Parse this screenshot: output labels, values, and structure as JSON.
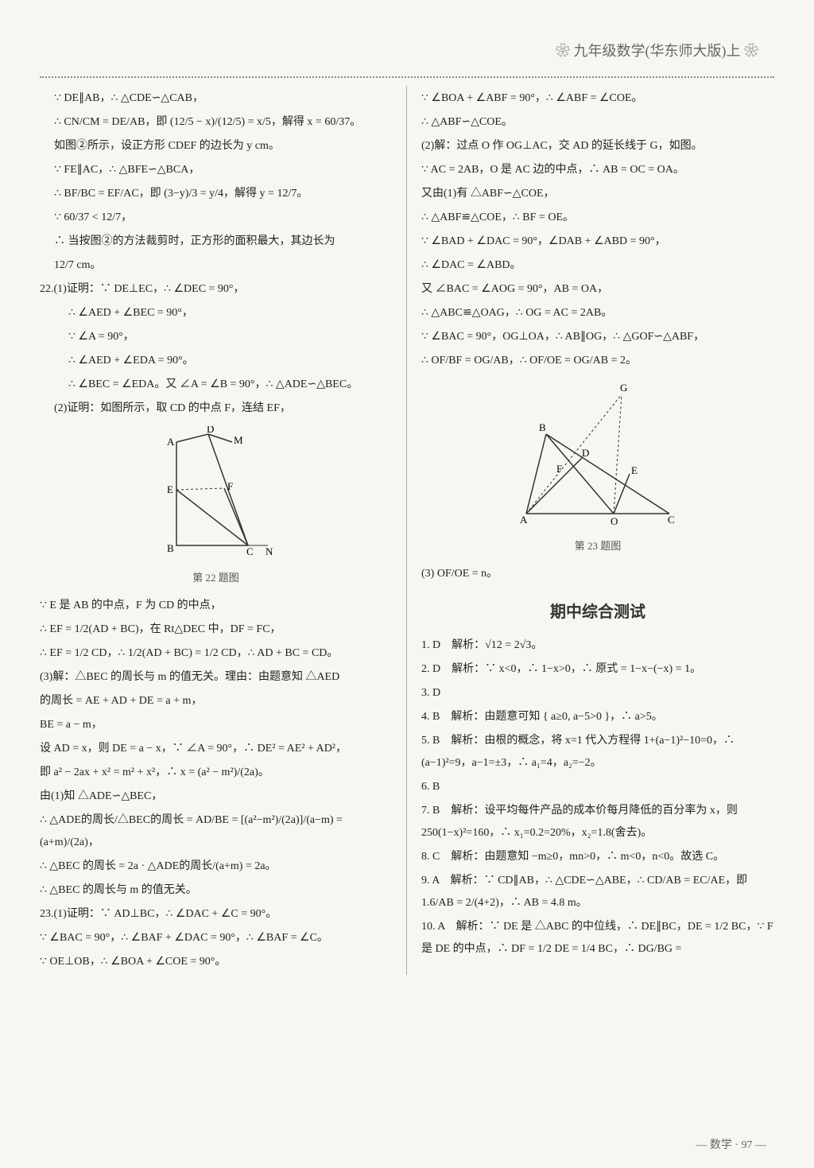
{
  "header": {
    "title": "九年级数学(华东师大版)上"
  },
  "footer": {
    "label": "数学 · 97"
  },
  "figures": {
    "fig22": {
      "caption": "第 22 题图",
      "points": [
        "A",
        "B",
        "C",
        "D",
        "E",
        "F",
        "M",
        "N"
      ]
    },
    "fig23": {
      "caption": "第 23 题图",
      "points": [
        "A",
        "B",
        "C",
        "D",
        "E",
        "F",
        "G",
        "O"
      ]
    }
  },
  "left": {
    "lines": [
      "∵ DE∥AB，∴ △CDE∽△CAB，",
      "∴ CN/CM = DE/AB，即 (12/5 − x)/(12/5) = x/5，解得 x = 60/37。",
      "如图②所示，设正方形 CDEF 的边长为 y cm。",
      "∵ FE∥AC，∴ △BFE∽△BCA，",
      "∴ BF/BC = EF/AC，即 (3−y)/3 = y/4，解得 y = 12/7。",
      "∵ 60/37 < 12/7，",
      "∴ 当按图②的方法裁剪时，正方形的面积最大，其边长为",
      "12/7 cm。",
      "22.(1)证明：∵ DE⊥EC，∴ ∠DEC = 90°，",
      "∴ ∠AED + ∠BEC = 90°，",
      "∵ ∠A = 90°，",
      "∴ ∠AED + ∠EDA = 90°。",
      "∴ ∠BEC = ∠EDA。又 ∠A = ∠B = 90°，∴ △ADE∽△BEC。",
      "(2)证明：如图所示，取 CD 的中点 F，连结 EF，",
      "[FIG22]",
      "∵ E 是 AB 的中点，F 为 CD 的中点，",
      "∴ EF = 1/2(AD + BC)，在 Rt△DEC 中，DF = FC，",
      "∴ EF = 1/2 CD，∴ 1/2(AD + BC) = 1/2 CD，∴ AD + BC = CD。",
      "(3)解：△BEC 的周长与 m 的值无关。理由：由题意知 △AED",
      "的周长 = AE + AD + DE = a + m，",
      "BE = a − m，",
      "设 AD = x，则 DE = a − x，∵ ∠A = 90°，∴ DE² = AE² + AD²，",
      "即 a² − 2ax + x² = m² + x²，∴ x = (a² − m²)/(2a)。",
      "由(1)知 △ADE∽△BEC，",
      "∴ △ADE的周长/△BEC的周长 = AD/BE = [(a²−m²)/(2a)]/(a−m) = (a+m)/(2a)，",
      "∴ △BEC 的周长 = 2a · △ADE的周长/(a+m) = 2a。",
      "∴ △BEC 的周长与 m 的值无关。",
      "23.(1)证明：∵ AD⊥BC，∴ ∠DAC + ∠C = 90°。",
      "∵ ∠BAC = 90°，∴ ∠BAF + ∠DAC = 90°，∴ ∠BAF = ∠C。",
      "∵ OE⊥OB，∴ ∠BOA + ∠COE = 90°。"
    ]
  },
  "right": {
    "lines1": [
      "∵ ∠BOA + ∠ABF = 90°，∴ ∠ABF = ∠COE。",
      "∴ △ABF∽△COE。",
      "(2)解：过点 O 作 OG⊥AC，交 AD 的延长线于 G，如图。",
      "∵ AC = 2AB，O 是 AC 边的中点，∴ AB = OC = OA。",
      "又由(1)有 △ABF∽△COE，",
      "∴ △ABF≌△COE，∴ BF = OE。",
      "∵ ∠BAD + ∠DAC = 90°，∠DAB + ∠ABD = 90°，",
      "∴ ∠DAC = ∠ABD。",
      "又 ∠BAC = ∠AOG = 90°，AB = OA，",
      "∴ △ABC≌△OAG，∴ OG = AC = 2AB。",
      "∵ ∠BAC = 90°，OG⊥OA，∴ AB∥OG，∴ △GOF∽△ABF，",
      "∴ OF/BF = OG/AB，∴ OF/OE = OG/AB = 2。",
      "[FIG23]",
      "(3) OF/OE = n。"
    ],
    "section": "期中综合测试",
    "items": [
      {
        "no": "1",
        "ans": "D",
        "exp": "解析：√12 = 2√3。"
      },
      {
        "no": "2",
        "ans": "D",
        "exp": "解析：∵ x<0，∴ 1−x>0，∴ 原式 = 1−x−(−x) = 1。"
      },
      {
        "no": "3",
        "ans": "D",
        "exp": ""
      },
      {
        "no": "4",
        "ans": "B",
        "exp": "解析：由题意可知 { a≥0, a−5>0 }，∴ a>5。"
      },
      {
        "no": "5",
        "ans": "B",
        "exp": "解析：由根的概念，将 x=1 代入方程得 1+(a−1)²−10=0，∴ (a−1)²=9，a−1=±3，∴ a₁=4，a₂=−2。"
      },
      {
        "no": "6",
        "ans": "B",
        "exp": ""
      },
      {
        "no": "7",
        "ans": "B",
        "exp": "解析：设平均每件产品的成本价每月降低的百分率为 x，则 250(1−x)²=160，∴ x₁=0.2=20%，x₂=1.8(舍去)。"
      },
      {
        "no": "8",
        "ans": "C",
        "exp": "解析：由题意知 −m≥0，mn>0，∴ m<0，n<0。故选 C。"
      },
      {
        "no": "9",
        "ans": "A",
        "exp": "解析：∵ CD∥AB，∴ △CDE∽△ABE，∴ CD/AB = EC/AE，即 1.6/AB = 2/(4+2)，∴ AB = 4.8 m。"
      },
      {
        "no": "10",
        "ans": "A",
        "exp": "解析：∵ DE 是 △ABC 的中位线，∴ DE∥BC，DE = 1/2 BC，∵ F 是 DE 的中点，∴ DF = 1/2 DE = 1/4 BC，∴ DG/BG ="
      }
    ]
  }
}
